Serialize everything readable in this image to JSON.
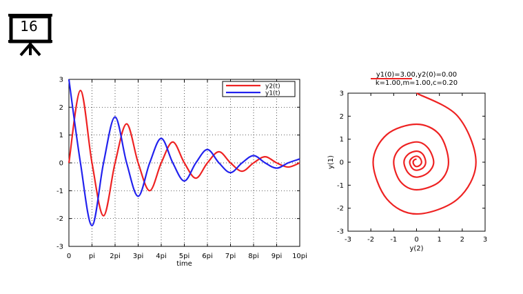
{
  "slide": {
    "number": "16"
  },
  "chart_data": [
    {
      "type": "line",
      "title": "",
      "xlabel": "time",
      "ylabel": "",
      "xlim": [
        0,
        10
      ],
      "ylim": [
        -3,
        3
      ],
      "x_unit": "pi",
      "grid": true,
      "legend_position": "top-right",
      "x_ticks": [
        0,
        1,
        2,
        3,
        4,
        5,
        6,
        7,
        8,
        9,
        10
      ],
      "x_tick_labels": [
        "0",
        "pi",
        "2pi",
        "3pi",
        "4pi",
        "5pi",
        "6pi",
        "7pi",
        "8pi",
        "9pi",
        "10pi"
      ],
      "y_ticks": [
        -3,
        -2,
        -1,
        0,
        1,
        2,
        3
      ],
      "y_tick_labels": [
        "-3",
        "-2",
        "-1",
        "0",
        "1",
        "2",
        "3"
      ],
      "series": [
        {
          "name": "y2(t)",
          "color": "#ee2222",
          "x": [
            0,
            0.5,
            1.0,
            1.5,
            2.0,
            2.5,
            3.0,
            3.5,
            4.0,
            4.5,
            5.0,
            5.5,
            6.0,
            6.5,
            7.0,
            7.5,
            8.0,
            8.5,
            9.0,
            9.5,
            10.0
          ],
          "y": [
            0,
            2.6,
            0,
            -1.9,
            0,
            1.4,
            0,
            -1.0,
            0,
            0.75,
            0,
            -0.55,
            0,
            0.4,
            0,
            -0.3,
            0,
            0.22,
            0,
            -0.15,
            0
          ]
        },
        {
          "name": "y1(t)",
          "color": "#2222ee",
          "x": [
            0,
            0.5,
            1.0,
            1.5,
            2.0,
            2.5,
            3.0,
            3.5,
            4.0,
            4.5,
            5.0,
            5.5,
            6.0,
            6.5,
            7.0,
            7.5,
            8.0,
            8.5,
            9.0,
            9.5,
            10.0
          ],
          "y": [
            3.0,
            0,
            -2.25,
            0,
            1.65,
            0,
            -1.2,
            0,
            0.88,
            0,
            -0.65,
            0,
            0.48,
            0,
            -0.35,
            0,
            0.26,
            0,
            -0.19,
            0,
            0.14
          ]
        }
      ]
    },
    {
      "type": "line",
      "title": "y1(0)=3.00,y2(0)=0.00",
      "subtitle": "k=1.00,m=1.00,c=0.20",
      "xlabel": "y(2)",
      "ylabel": "y(1)",
      "xlim": [
        -3,
        3
      ],
      "ylim": [
        -3,
        3
      ],
      "grid": false,
      "x_ticks": [
        -3,
        -2,
        -1,
        0,
        1,
        2,
        3
      ],
      "x_tick_labels": [
        "-3",
        "-2",
        "-1",
        "0",
        "1",
        "2",
        "3"
      ],
      "y_ticks": [
        -3,
        -2,
        -1,
        0,
        1,
        2,
        3
      ],
      "y_tick_labels": [
        "-3",
        "-2",
        "-1",
        "0",
        "1",
        "2",
        "3"
      ],
      "series": [
        {
          "color": "#ee2222",
          "x": [
            0,
            1.8,
            2.6,
            1.8,
            0,
            -1.3,
            -1.9,
            -1.3,
            0,
            1.0,
            1.4,
            1.0,
            0,
            -0.7,
            -1.0,
            -0.7,
            0,
            0.5,
            0.75,
            0.5,
            0,
            -0.37,
            -0.55,
            -0.37,
            0,
            0.28,
            0.4,
            0.28,
            0,
            -0.2,
            -0.3,
            -0.2,
            0,
            0.15,
            0.22,
            0.15,
            0,
            -0.1,
            -0.15,
            -0.1,
            0
          ],
          "y": [
            3.0,
            2.0,
            0,
            -1.6,
            -2.25,
            -1.6,
            0,
            1.2,
            1.65,
            1.2,
            0,
            -0.85,
            -1.2,
            -0.85,
            0,
            0.62,
            0.88,
            0.62,
            0,
            -0.46,
            -0.65,
            -0.46,
            0,
            0.34,
            0.48,
            0.34,
            0,
            -0.25,
            -0.35,
            -0.25,
            0,
            0.18,
            0.26,
            0.18,
            0,
            -0.13,
            -0.19,
            -0.13,
            0,
            0.1,
            0.14
          ]
        }
      ]
    }
  ]
}
